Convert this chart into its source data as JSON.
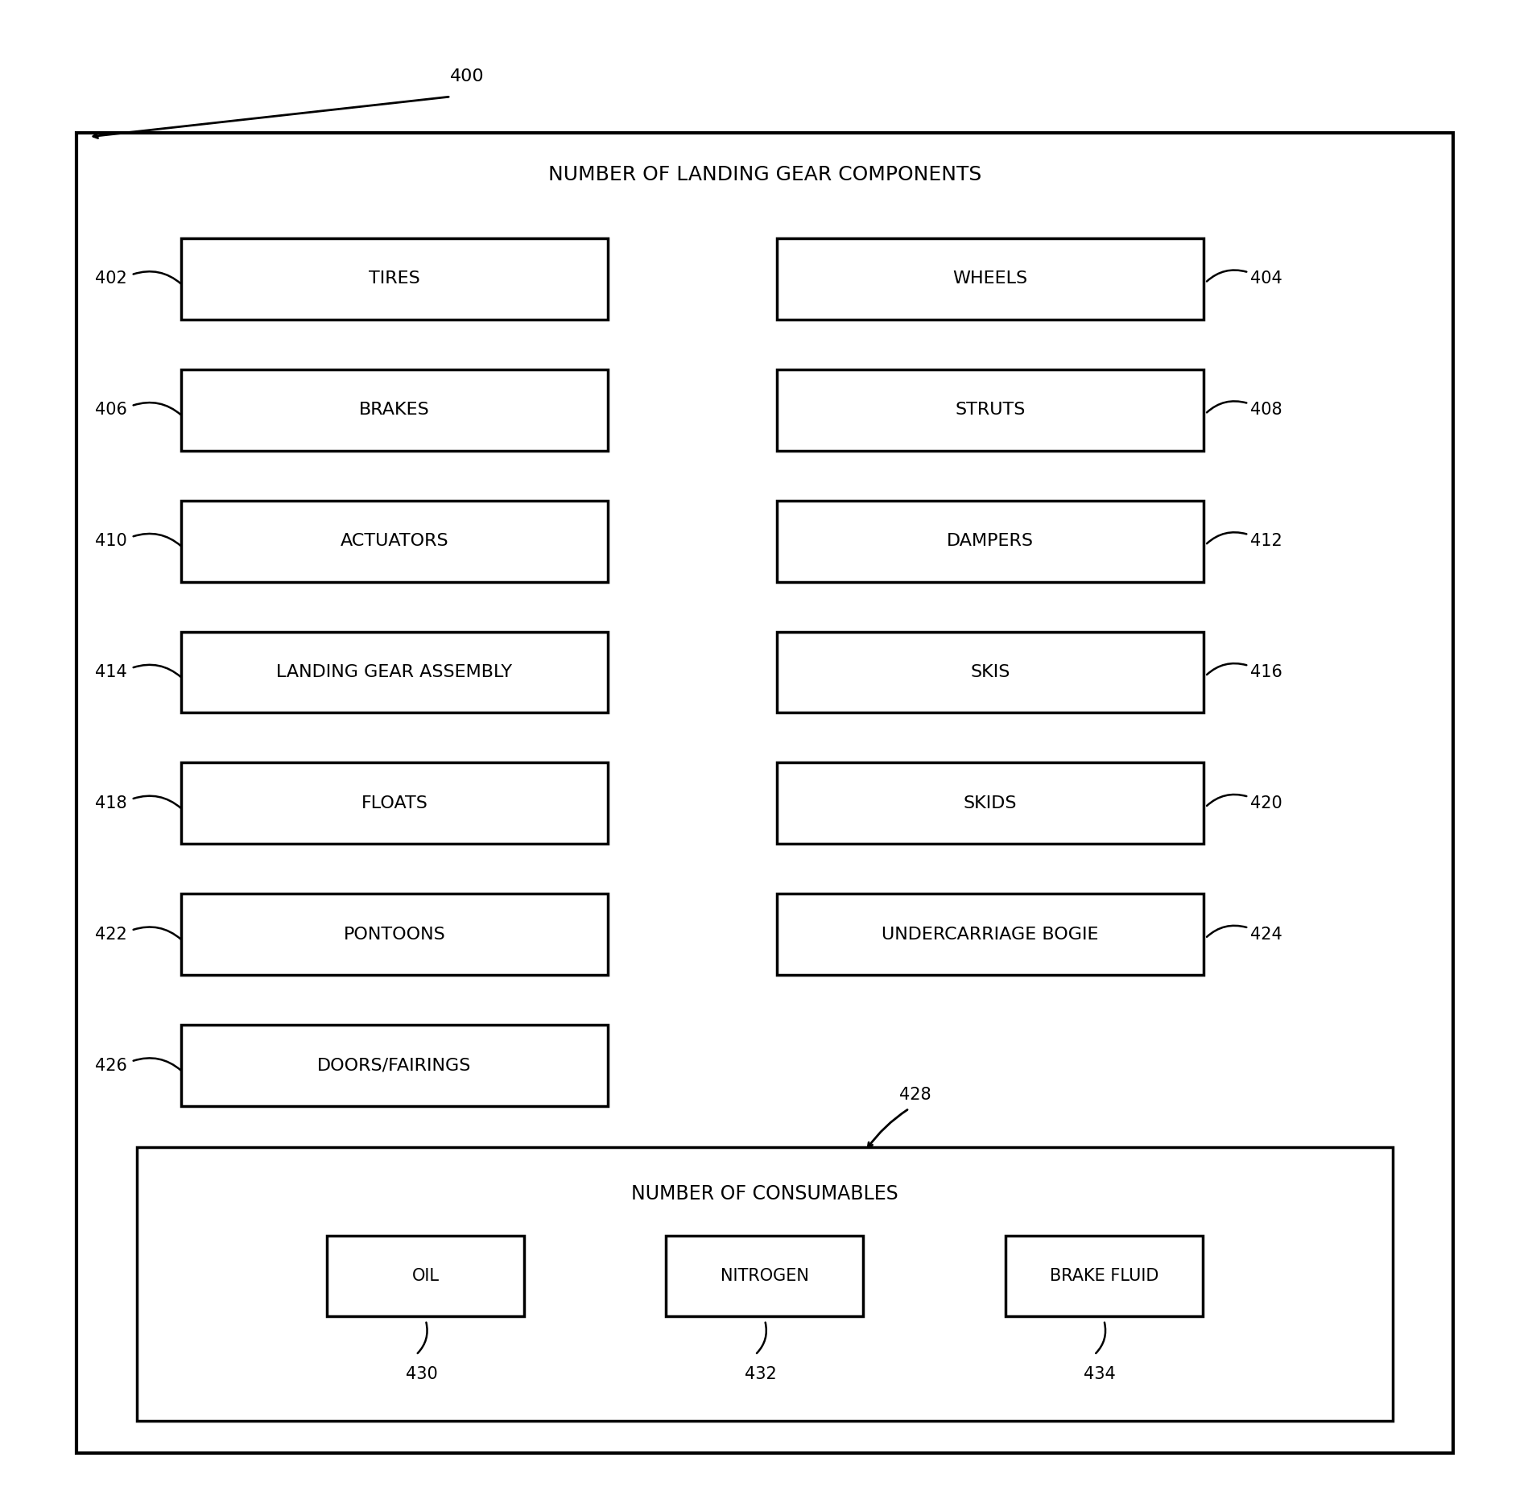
{
  "title": "NUMBER OF LANDING GEAR COMPONENTS",
  "left_boxes": [
    {
      "label": "TIRES",
      "id": "402"
    },
    {
      "label": "BRAKES",
      "id": "406"
    },
    {
      "label": "ACTUATORS",
      "id": "410"
    },
    {
      "label": "LANDING GEAR ASSEMBLY",
      "id": "414"
    },
    {
      "label": "FLOATS",
      "id": "418"
    },
    {
      "label": "PONTOONS",
      "id": "422"
    },
    {
      "label": "DOORS/FAIRINGS",
      "id": "426"
    }
  ],
  "right_boxes": [
    {
      "label": "WHEELS",
      "id": "404"
    },
    {
      "label": "STRUTS",
      "id": "408"
    },
    {
      "label": "DAMPERS",
      "id": "412"
    },
    {
      "label": "SKIS",
      "id": "416"
    },
    {
      "label": "SKIDS",
      "id": "420"
    },
    {
      "label": "UNDERCARRIAGE BOGIE",
      "id": "424"
    },
    {
      "label": "",
      "id": ""
    }
  ],
  "consumables_box": {
    "title": "NUMBER OF CONSUMABLES",
    "id": "428",
    "items": [
      {
        "label": "OIL",
        "id": "430"
      },
      {
        "label": "NITROGEN",
        "id": "432"
      },
      {
        "label": "BRAKE FLUID",
        "id": "434"
      }
    ]
  },
  "figure_label": "400",
  "bg_color": "#ffffff",
  "box_color": "#000000",
  "text_color": "#000000"
}
